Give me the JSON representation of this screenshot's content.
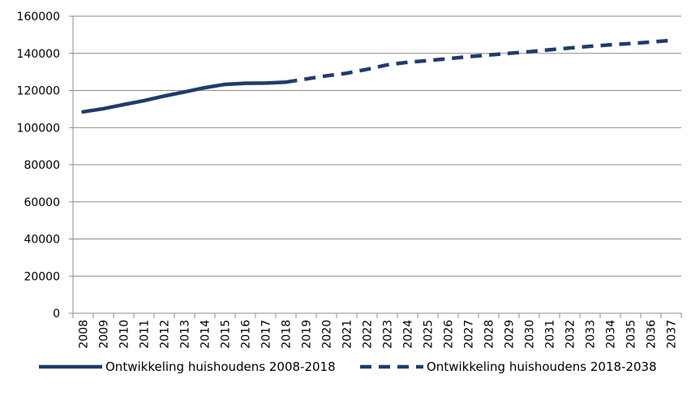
{
  "chart_data": {
    "type": "line",
    "title": "",
    "xlabel": "",
    "ylabel": "",
    "categories": [
      "2008",
      "2009",
      "2010",
      "2011",
      "2012",
      "2013",
      "2014",
      "2015",
      "2016",
      "2017",
      "2018",
      "2019",
      "2020",
      "2021",
      "2022",
      "2023",
      "2024",
      "2025",
      "2026",
      "2027",
      "2028",
      "2029",
      "2030",
      "2031",
      "2032",
      "2033",
      "2034",
      "2035",
      "2036",
      "2037"
    ],
    "ylim": [
      0,
      160000
    ],
    "yticks": [
      "0",
      "20000",
      "40000",
      "60000",
      "80000",
      "100000",
      "120000",
      "140000",
      "160000"
    ],
    "grid": true,
    "legend_position": "bottom",
    "series": [
      {
        "name": "Ontwikkeling huishoudens 2008-2018",
        "style": "solid",
        "color": "#1f3c6b",
        "values": [
          108500,
          110200,
          112400,
          114500,
          117000,
          119200,
          121500,
          123300,
          123900,
          124000,
          124500,
          null,
          null,
          null,
          null,
          null,
          null,
          null,
          null,
          null,
          null,
          null,
          null,
          null,
          null,
          null,
          null,
          null,
          null,
          null
        ]
      },
      {
        "name": "Ontwikkeling huishoudens 2018-2038",
        "style": "dashed",
        "color": "#1f3c6b",
        "values": [
          null,
          null,
          null,
          null,
          null,
          null,
          null,
          null,
          null,
          null,
          124500,
          126200,
          127900,
          129300,
          131400,
          133800,
          135200,
          136100,
          137100,
          138200,
          139100,
          140000,
          140900,
          141900,
          142900,
          143800,
          144600,
          145300,
          146100,
          147000
        ]
      }
    ]
  }
}
